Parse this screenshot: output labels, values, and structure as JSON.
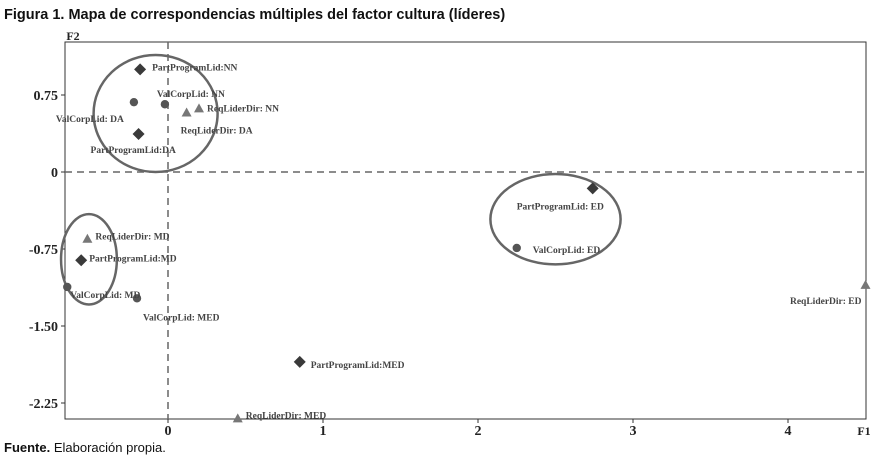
{
  "figure": {
    "title": "Figura 1. Mapa de correspondencias múltiples del factor cultura (líderes)",
    "source_bold": "Fuente.",
    "source_text": " Elaboración propia."
  },
  "chart_data": {
    "type": "scatter",
    "xlabel": "F1",
    "ylabel": "F2",
    "xlim": [
      -0.6,
      4.5
    ],
    "ylim": [
      -2.5,
      1.2
    ],
    "x_ticks": [
      {
        "value": 0,
        "label": "0"
      },
      {
        "value": 1,
        "label": "1"
      },
      {
        "value": 2,
        "label": "2"
      },
      {
        "value": 3,
        "label": "3"
      },
      {
        "value": 4,
        "label": "4"
      }
    ],
    "y_ticks": [
      {
        "value": 0.75,
        "label": "0.75"
      },
      {
        "value": 0,
        "label": "0"
      },
      {
        "value": -0.75,
        "label": "-0.75"
      },
      {
        "value": -1.5,
        "label": "-1.50"
      },
      {
        "value": -2.25,
        "label": "-2.25"
      }
    ],
    "reference_lines": {
      "x": 0,
      "y": 0,
      "style": "dashed"
    },
    "legend": "none",
    "grid": false,
    "marker_colors": {
      "diamond": "#3a3a3a",
      "circle": "#555555",
      "triangle": "#777777"
    },
    "points": [
      {
        "label": "PartProgramLid:NN",
        "x": -0.18,
        "y": 1.0,
        "marker": "diamond"
      },
      {
        "label": "ValCorpLid: NN",
        "x": -0.02,
        "y": 0.66,
        "marker": "circle"
      },
      {
        "label": "ReqLiderDir: NN",
        "x": 0.2,
        "y": 0.62,
        "marker": "triangle"
      },
      {
        "label": "ValCorpLid: DA",
        "x": -0.22,
        "y": 0.68,
        "marker": "circle"
      },
      {
        "label": "ReqLiderDir: DA",
        "x": 0.12,
        "y": 0.58,
        "marker": "triangle"
      },
      {
        "label": "PartProgramLid:DA",
        "x": -0.19,
        "y": 0.37,
        "marker": "diamond"
      },
      {
        "label": "PartProgramLid: ED",
        "x": 2.74,
        "y": -0.16,
        "marker": "diamond"
      },
      {
        "label": "ValCorpLid: ED",
        "x": 2.25,
        "y": -0.74,
        "marker": "circle"
      },
      {
        "label": "ReqLiderDir: ED",
        "x": 4.5,
        "y": -1.1,
        "marker": "triangle"
      },
      {
        "label": "ReqLiderDir: MD",
        "x": -0.52,
        "y": -0.65,
        "marker": "triangle"
      },
      {
        "label": "PartProgramLid:MD",
        "x": -0.56,
        "y": -0.86,
        "marker": "diamond"
      },
      {
        "label": "ValCorpLid: MD",
        "x": -0.65,
        "y": -1.12,
        "marker": "circle"
      },
      {
        "label": "ValCorpLid: MED",
        "x": -0.2,
        "y": -1.23,
        "marker": "circle"
      },
      {
        "label": "PartProgramLid:MED",
        "x": 0.85,
        "y": -1.85,
        "marker": "diamond"
      },
      {
        "label": "ReqLiderDir: MED",
        "x": 0.45,
        "y": -2.4,
        "marker": "triangle"
      }
    ],
    "ellipses": [
      {
        "cx": -0.08,
        "cy": 0.57,
        "rx": 0.4,
        "ry": 0.57
      },
      {
        "cx": 2.5,
        "cy": -0.46,
        "rx": 0.42,
        "ry": 0.44
      },
      {
        "cx": -0.51,
        "cy": -0.85,
        "rx": 0.18,
        "ry": 0.44
      }
    ]
  }
}
